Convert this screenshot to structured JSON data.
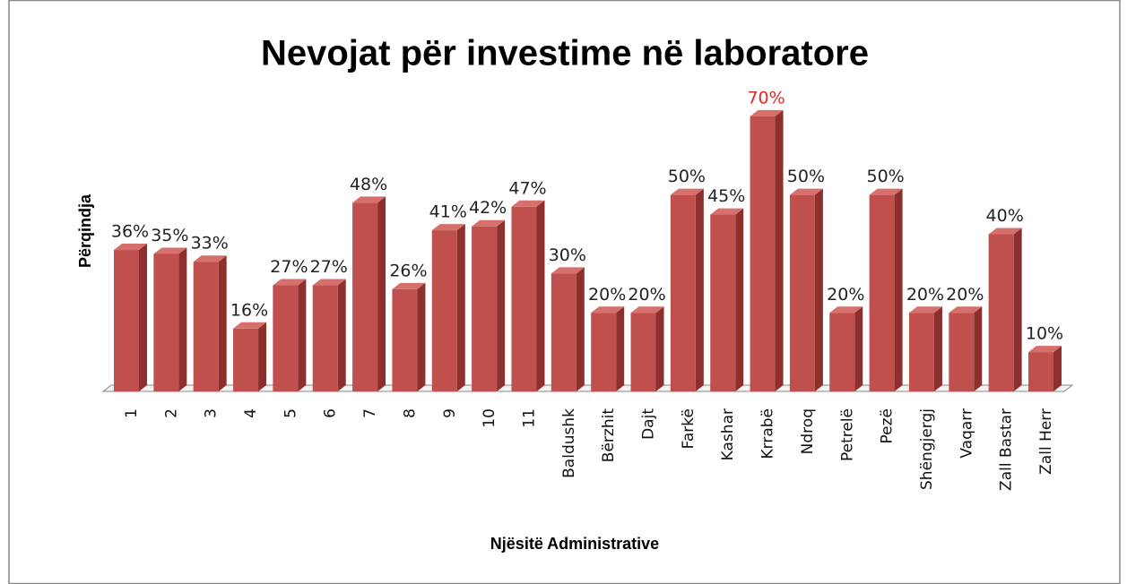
{
  "chart_data": {
    "type": "bar3d",
    "title": "Nevojat për investime në laboratore",
    "y_label": "Përqindja",
    "x_label": "Njësitë Administrative",
    "categories": [
      "1",
      "2",
      "3",
      "4",
      "5",
      "6",
      "7",
      "8",
      "9",
      "10",
      "11",
      "Baldushk",
      "Bërzhit",
      "Dajt",
      "Farkë",
      "Kashar",
      "Krrabë",
      "Ndroq",
      "Petrelë",
      "Pezë",
      "Shëngjergj",
      "Vaqarr",
      "Zall Bastar",
      "Zall Herr"
    ],
    "values": [
      36,
      35,
      33,
      16,
      27,
      27,
      48,
      26,
      41,
      42,
      47,
      30,
      20,
      20,
      50,
      45,
      70,
      50,
      20,
      50,
      20,
      20,
      40,
      10
    ],
    "value_labels": [
      "36%",
      "35%",
      "33%",
      "16%",
      "27%",
      "27%",
      "48%",
      "26%",
      "41%",
      "42%",
      "47%",
      "30%",
      "20%",
      "20%",
      "50%",
      "45%",
      "70%",
      "50%",
      "20%",
      "50%",
      "20%",
      "20%",
      "40%",
      "10%"
    ],
    "value_label_colors": [
      "#222",
      "#222",
      "#222",
      "#222",
      "#222",
      "#222",
      "#222",
      "#222",
      "#222",
      "#222",
      "#222",
      "#222",
      "#222",
      "#222",
      "#222",
      "#222",
      "#e8261e",
      "#222",
      "#222",
      "#222",
      "#222",
      "#222",
      "#222",
      "#222"
    ],
    "color": "#c0504d",
    "ylim": [
      0,
      80
    ]
  }
}
